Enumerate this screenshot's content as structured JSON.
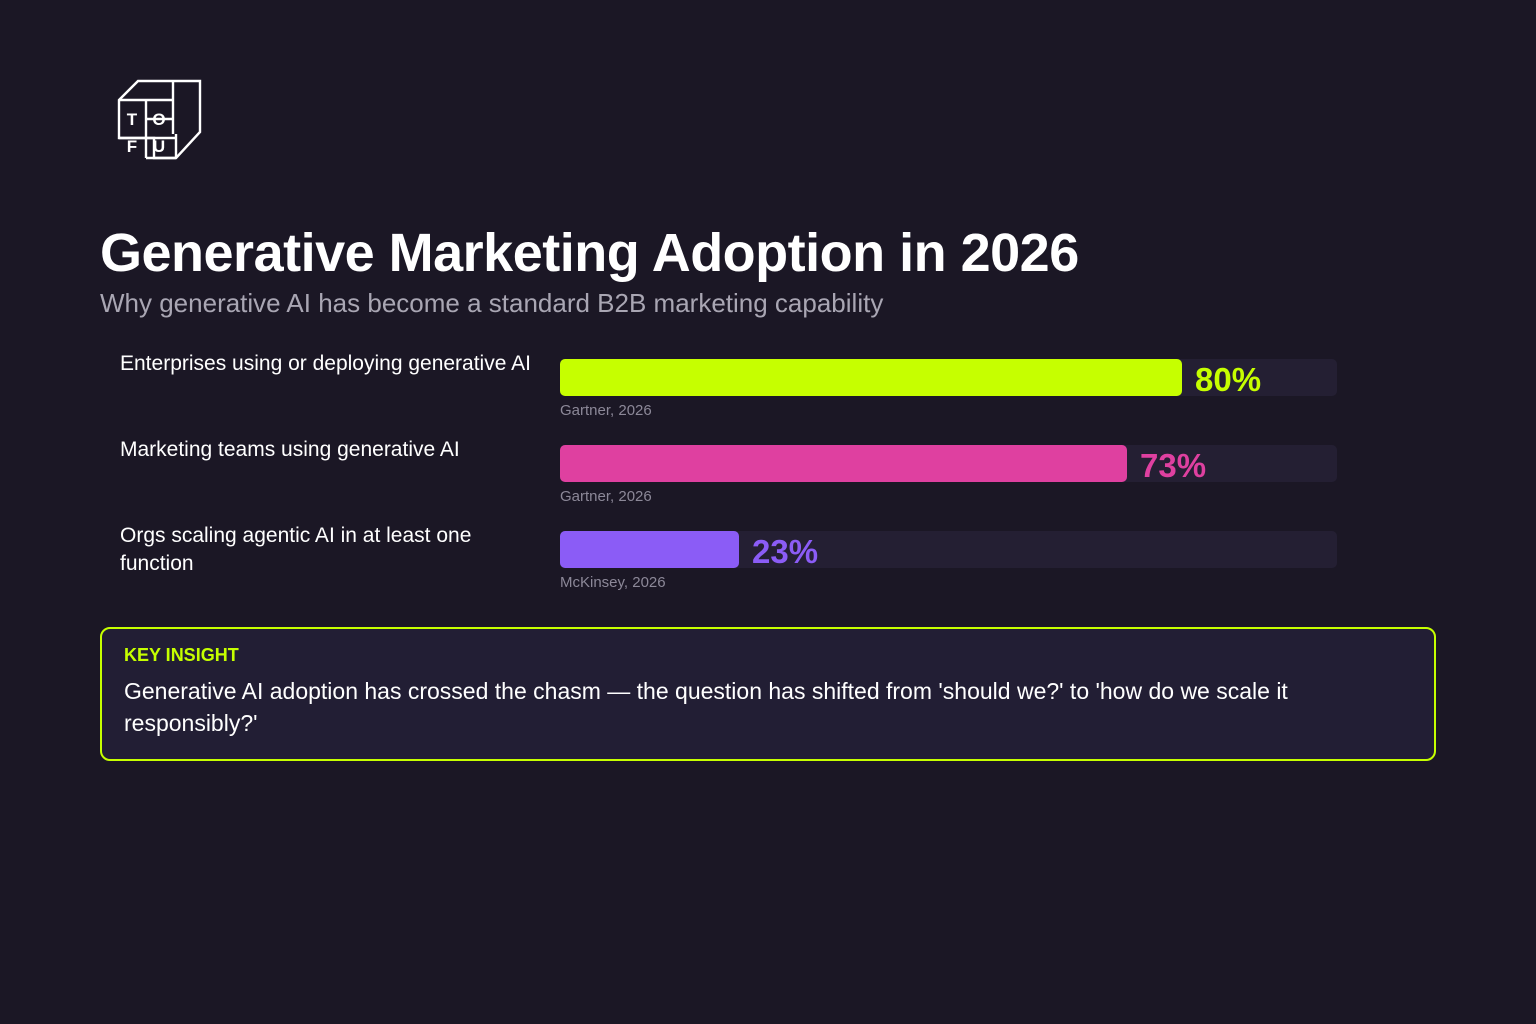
{
  "brand": {
    "logo_letters": [
      "T",
      "O",
      "F",
      "U"
    ]
  },
  "header": {
    "title": "Generative Marketing Adoption in 2026",
    "subtitle": "Why generative AI has become a standard B2B marketing capability"
  },
  "chart_data": {
    "type": "bar",
    "orientation": "horizontal",
    "xlim": [
      0,
      100
    ],
    "grid": false,
    "categories": [
      "Enterprises using or deploying generative AI",
      "Marketing teams using generative AI",
      "Orgs scaling agentic AI in at least one function"
    ],
    "values": [
      80,
      73,
      23
    ],
    "value_labels": [
      "80%",
      "73%",
      "23%"
    ],
    "sources": [
      "Gartner, 2026",
      "Gartner, 2026",
      "McKinsey, 2026"
    ],
    "colors": [
      "#c6ff00",
      "#df40a0",
      "#8b5cf6"
    ],
    "track_color": "#241f33"
  },
  "insight": {
    "label": "KEY INSIGHT",
    "text": "Generative AI adoption has crossed the chasm — the question has shifted from 'should we?' to 'how do we scale it responsibly?'"
  },
  "colors": {
    "background": "#1b1725",
    "accent": "#c6ff00",
    "subtitle": "#a9a6b3",
    "source": "#8c8898"
  }
}
